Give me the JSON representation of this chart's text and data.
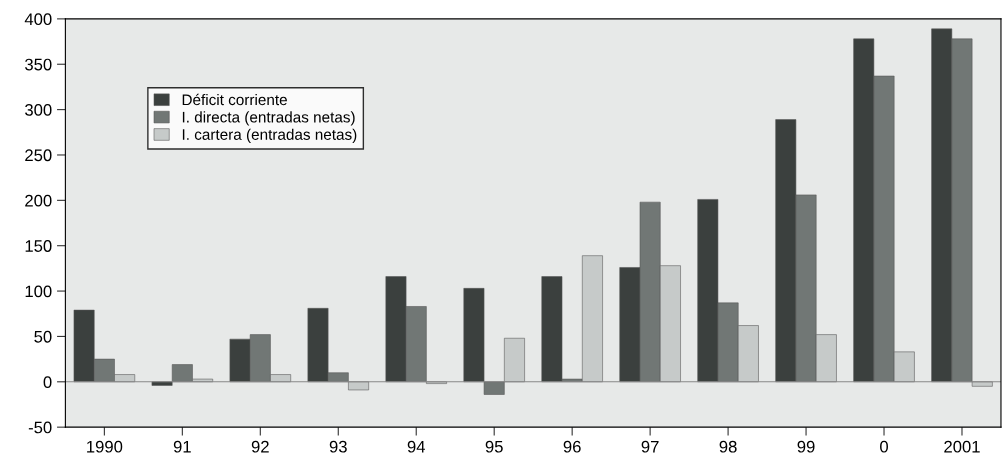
{
  "chart_data": {
    "type": "bar",
    "categories": [
      "1990",
      "91",
      "92",
      "93",
      "94",
      "95",
      "96",
      "97",
      "98",
      "99",
      "0",
      "2001"
    ],
    "series": [
      {
        "name": "Déficit corriente",
        "color": "#3b403e",
        "values": [
          79,
          -4,
          47,
          81,
          116,
          103,
          116,
          126,
          201,
          289,
          378,
          389
        ]
      },
      {
        "name": "I. directa (entradas netas)",
        "color": "#717775",
        "values": [
          25,
          19,
          52,
          10,
          83,
          -14,
          3,
          198,
          87,
          206,
          337,
          378
        ]
      },
      {
        "name": "I. cartera (entradas netas)",
        "color": "#c6cac9",
        "values": [
          8,
          3,
          8,
          -9,
          -2,
          48,
          139,
          128,
          62,
          52,
          33,
          -5
        ]
      }
    ],
    "ylim": [
      -50,
      400
    ],
    "yticks": [
      -50,
      0,
      50,
      100,
      150,
      200,
      250,
      300,
      350,
      400
    ],
    "ref_lines": [
      {
        "axis": "y",
        "value": 0,
        "color": "#888888"
      }
    ],
    "grid": false,
    "legend": "top left"
  }
}
